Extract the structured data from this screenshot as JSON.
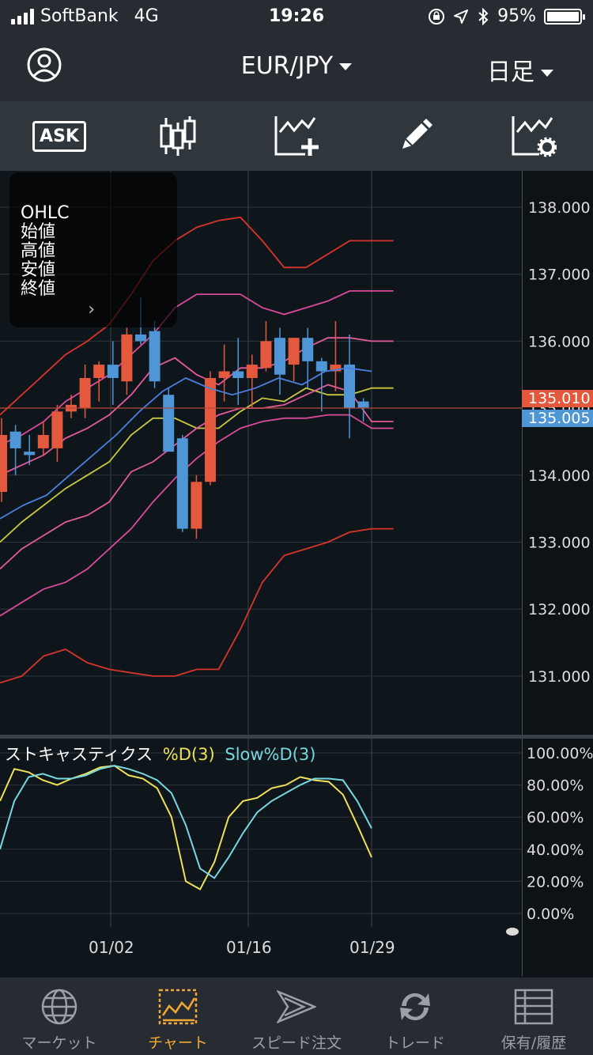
{
  "status_bar": {
    "carrier": "SoftBank",
    "network": "4G",
    "time": "19:26",
    "battery_percent": "95%"
  },
  "header": {
    "pair": "EUR/JPY",
    "period": "日足"
  },
  "toolbar": {
    "ask_label": "ASK"
  },
  "ohlc_panel": {
    "lines": [
      "OHLC",
      "始値",
      "高値",
      "安値",
      "終値"
    ]
  },
  "price_axis": {
    "ticks": [
      "138.000",
      "137.000",
      "136.000",
      "135.000",
      "134.000",
      "133.000",
      "132.000",
      "131.000"
    ],
    "ask_tag": "135.010",
    "bid_tag": "135.005"
  },
  "stochastic": {
    "title": "ストキャスティクス",
    "k_label": "%D(3)",
    "d_label": "Slow%D(3)",
    "ticks": [
      "100.00%",
      "80.00%",
      "60.00%",
      "40.00%",
      "20.00%",
      "0.00%"
    ]
  },
  "x_axis": {
    "labels": [
      "01/02",
      "01/16",
      "01/29"
    ]
  },
  "tabs": [
    {
      "label": "マーケット",
      "active": false
    },
    {
      "label": "チャート",
      "active": true
    },
    {
      "label": "スピード注文",
      "active": false
    },
    {
      "label": "トレード",
      "active": false
    },
    {
      "label": "保有/履歴",
      "active": false
    }
  ],
  "colors": {
    "up": "#e4583d",
    "down": "#4e96d6",
    "accent": "#f2a832"
  },
  "chart_data": [
    {
      "type": "candlestick",
      "ylim": [
        130.5,
        138.5
      ],
      "x_labels": [
        "01/02",
        "01/16",
        "01/29"
      ],
      "candles": [
        {
          "o": 133.75,
          "h": 134.85,
          "l": 133.6,
          "c": 134.6
        },
        {
          "o": 134.65,
          "h": 134.75,
          "l": 134.0,
          "c": 134.4
        },
        {
          "o": 134.35,
          "h": 134.6,
          "l": 134.15,
          "c": 134.3
        },
        {
          "o": 134.4,
          "h": 134.8,
          "l": 134.3,
          "c": 134.6
        },
        {
          "o": 134.4,
          "h": 135.05,
          "l": 134.2,
          "c": 134.95
        },
        {
          "o": 134.95,
          "h": 135.2,
          "l": 134.85,
          "c": 135.05
        },
        {
          "o": 135.0,
          "h": 135.65,
          "l": 134.85,
          "c": 135.45
        },
        {
          "o": 135.45,
          "h": 135.7,
          "l": 135.1,
          "c": 135.65
        },
        {
          "o": 135.65,
          "h": 136.0,
          "l": 135.05,
          "c": 135.45
        },
        {
          "o": 135.4,
          "h": 136.2,
          "l": 135.2,
          "c": 136.1
        },
        {
          "o": 136.1,
          "h": 136.65,
          "l": 135.95,
          "c": 136.0
        },
        {
          "o": 136.15,
          "h": 136.3,
          "l": 135.3,
          "c": 135.4
        },
        {
          "o": 135.2,
          "h": 135.3,
          "l": 134.4,
          "c": 134.35
        },
        {
          "o": 134.55,
          "h": 134.6,
          "l": 133.15,
          "c": 133.2
        },
        {
          "o": 133.2,
          "h": 134.0,
          "l": 133.05,
          "c": 133.9
        },
        {
          "o": 133.9,
          "h": 135.55,
          "l": 133.85,
          "c": 135.45
        },
        {
          "o": 135.45,
          "h": 135.95,
          "l": 135.1,
          "c": 135.55
        },
        {
          "o": 135.55,
          "h": 136.05,
          "l": 135.05,
          "c": 135.45
        },
        {
          "o": 135.45,
          "h": 135.8,
          "l": 135.0,
          "c": 135.65
        },
        {
          "o": 135.6,
          "h": 136.3,
          "l": 135.55,
          "c": 136.0
        },
        {
          "o": 136.05,
          "h": 136.2,
          "l": 135.2,
          "c": 135.5
        },
        {
          "o": 135.65,
          "h": 136.0,
          "l": 135.4,
          "c": 136.05
        },
        {
          "o": 136.05,
          "h": 136.2,
          "l": 135.3,
          "c": 135.7
        },
        {
          "o": 135.7,
          "h": 135.75,
          "l": 134.95,
          "c": 135.55
        },
        {
          "o": 135.55,
          "h": 136.3,
          "l": 135.25,
          "c": 135.65
        },
        {
          "o": 135.65,
          "h": 136.1,
          "l": 134.55,
          "c": 135.0
        },
        {
          "o": 135.1,
          "h": 135.15,
          "l": 134.8,
          "c": 135.01
        }
      ],
      "bollinger": {
        "upper3": [
          134.9,
          135.2,
          135.5,
          135.8,
          136.0,
          136.25,
          136.7,
          137.2,
          137.5,
          137.7,
          137.8,
          137.85,
          137.5,
          137.1,
          137.1,
          137.3,
          137.5,
          137.5,
          137.5
        ],
        "upper2": [
          134.45,
          134.6,
          134.8,
          135.1,
          135.3,
          135.5,
          135.8,
          136.1,
          136.5,
          136.7,
          136.7,
          136.7,
          136.5,
          136.4,
          136.5,
          136.6,
          136.75,
          136.75,
          136.75
        ],
        "upper1": [
          134.0,
          134.15,
          134.3,
          134.55,
          134.7,
          134.9,
          135.2,
          135.6,
          135.75,
          135.5,
          135.35,
          135.6,
          135.6,
          135.7,
          135.9,
          136.05,
          136.05,
          136.0,
          136.0
        ],
        "middle": [
          133.0,
          133.3,
          133.55,
          133.8,
          134.0,
          134.2,
          134.6,
          134.85,
          134.85,
          134.7,
          134.7,
          134.95,
          135.15,
          135.1,
          135.3,
          135.2,
          135.2,
          135.3,
          135.3
        ],
        "lower1": [
          132.6,
          132.9,
          133.1,
          133.3,
          133.4,
          133.6,
          134.05,
          134.2,
          134.45,
          134.7,
          134.9,
          135.0,
          135.0,
          135.05,
          135.2,
          135.35,
          135.25,
          134.8,
          134.8
        ],
        "lower2": [
          131.9,
          132.1,
          132.3,
          132.4,
          132.6,
          132.9,
          133.2,
          133.6,
          133.95,
          134.25,
          134.5,
          134.7,
          134.8,
          134.85,
          134.85,
          134.9,
          134.9,
          134.7,
          134.7
        ],
        "lower3": [
          130.9,
          131.0,
          131.3,
          131.4,
          131.2,
          131.1,
          131.05,
          131.0,
          131.0,
          131.1,
          131.1,
          131.7,
          132.4,
          132.8,
          132.9,
          133.0,
          133.15,
          133.2,
          133.2
        ]
      }
    },
    {
      "type": "line",
      "title": "ストキャスティクス",
      "ylim": [
        0,
        100
      ],
      "series": [
        {
          "name": "%D(3)",
          "values": [
            70,
            90,
            88,
            83,
            80,
            84,
            87,
            91,
            92,
            86,
            84,
            78,
            60,
            20,
            15,
            32,
            60,
            70,
            72,
            78,
            80,
            85,
            83,
            82,
            74,
            55,
            35
          ]
        },
        {
          "name": "Slow%D(3)",
          "values": [
            40,
            70,
            85,
            87,
            84,
            84,
            86,
            90,
            92,
            90,
            87,
            83,
            75,
            55,
            28,
            22,
            35,
            50,
            63,
            70,
            75,
            80,
            84,
            84,
            83,
            70,
            53
          ]
        }
      ]
    }
  ]
}
